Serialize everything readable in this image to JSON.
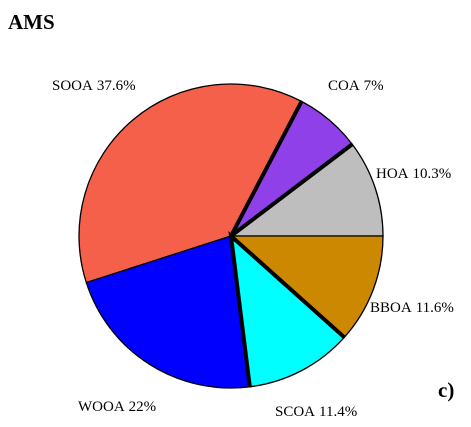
{
  "chart_data": {
    "type": "pie",
    "title": "AMS",
    "annotation": "c)",
    "categories": [
      "HOA",
      "COA",
      "SOOA",
      "WOOA",
      "SCOA",
      "BBOA"
    ],
    "values": [
      10.3,
      7,
      37.6,
      22,
      11.4,
      11.6
    ],
    "value_labels": [
      "10.3%",
      "7%",
      "37.6%",
      "22%",
      "11.4%",
      "11.6%"
    ],
    "colors": [
      "#bebebe",
      "#9040e8",
      "#f4604a",
      "#0000ff",
      "#00ffff",
      "#cc8800"
    ]
  }
}
